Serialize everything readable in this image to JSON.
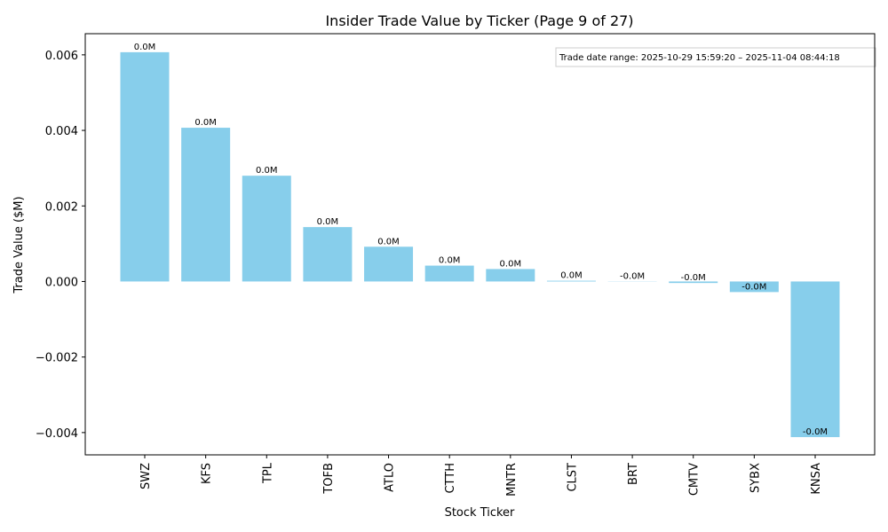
{
  "chart_data": {
    "type": "bar",
    "title": "Insider Trade Value by Ticker (Page 9 of 27)",
    "xlabel": "Stock Ticker",
    "ylabel": "Trade Value ($M)",
    "annotation": "Trade date range: 2025-10-29 15:59:20 – 2025-11-04 08:44:18",
    "categories": [
      "SWZ",
      "KFS",
      "TPL",
      "TOFB",
      "ATLO",
      "CTTH",
      "MNTR",
      "CLST",
      "BRT",
      "CMTV",
      "SYBX",
      "KNSA"
    ],
    "values": [
      0.00607,
      0.00407,
      0.0028,
      0.00144,
      0.00092,
      0.00042,
      0.00033,
      2e-05,
      -5e-06,
      -4e-05,
      -0.00028,
      -0.00412
    ],
    "value_labels": [
      "0.0M",
      "0.0M",
      "0.0M",
      "0.0M",
      "0.0M",
      "0.0M",
      "0.0M",
      "0.0M",
      "-0.0M",
      "-0.0M",
      "-0.0M",
      "-0.0M"
    ],
    "color": "#87ceeb",
    "ylim": [
      -0.00459,
      0.00656
    ],
    "yticks": [
      {
        "value": -0.004,
        "label": "−0.004"
      },
      {
        "value": -0.002,
        "label": "−0.002"
      },
      {
        "value": 0,
        "label": "0.000"
      },
      {
        "value": 0.002,
        "label": "0.002"
      },
      {
        "value": 0.004,
        "label": "0.004"
      },
      {
        "value": 0.006,
        "label": "0.006"
      }
    ],
    "grid": false
  }
}
